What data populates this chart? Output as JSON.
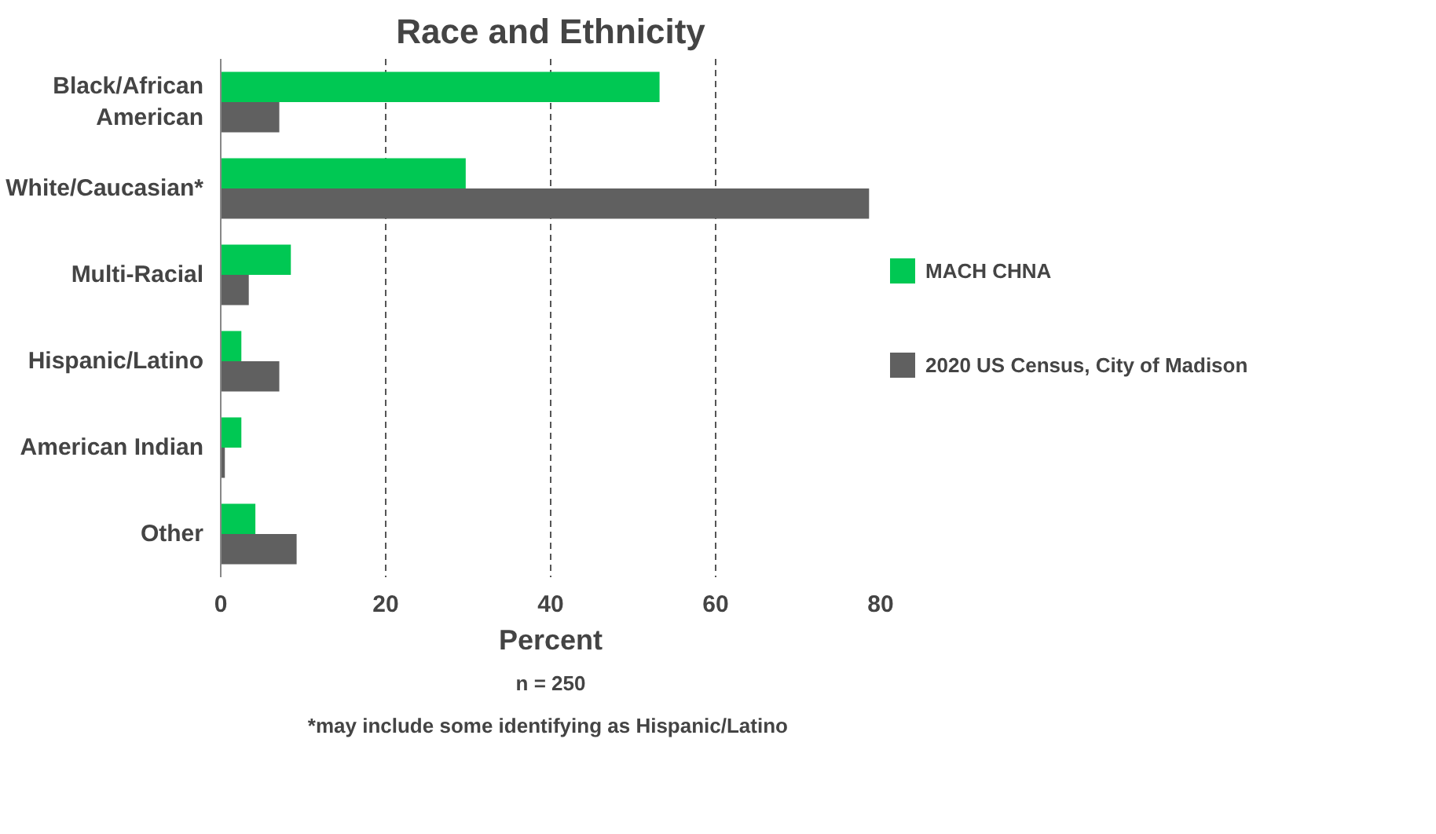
{
  "chart_data": {
    "type": "bar",
    "orientation": "horizontal",
    "title": "Race and Ethnicity",
    "xlabel": "Percent",
    "categories": [
      "Black/African\nAmerican",
      "White/Caucasian*",
      "Multi-Racial",
      "Hispanic/Latino",
      "American Indian",
      "Other"
    ],
    "series": [
      {
        "name": "MACH CHNA",
        "color": "#00c853",
        "values": [
          53.2,
          29.7,
          8.5,
          2.5,
          2.5,
          4.2
        ]
      },
      {
        "name": "2020 US Census, City of Madison",
        "color": "#606060",
        "values": [
          7.1,
          78.6,
          3.4,
          7.1,
          0.5,
          9.2
        ]
      }
    ],
    "xlim": [
      0,
      80
    ],
    "xticks": [
      0,
      20,
      40,
      60,
      80
    ],
    "grid": "x",
    "legend": "right",
    "annotations": [
      "n = 250",
      "*may include some identifying  as Hispanic/Latino"
    ]
  }
}
